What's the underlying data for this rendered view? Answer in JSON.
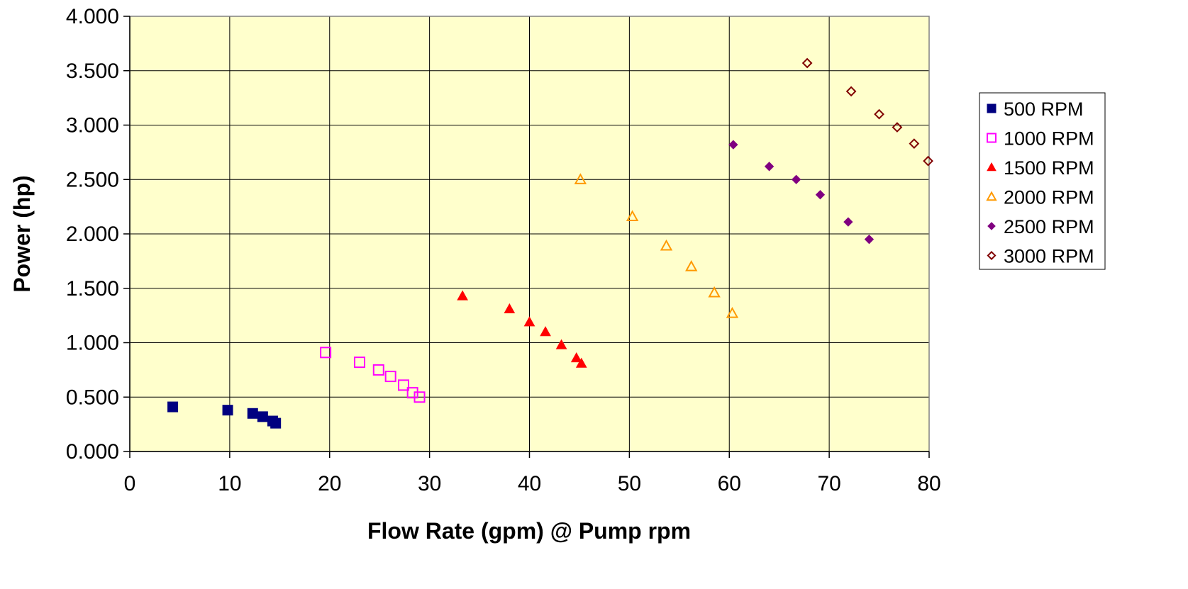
{
  "chart_data": {
    "type": "scatter",
    "title": "",
    "xlabel": "Flow Rate (gpm) @ Pump rpm",
    "ylabel": "Power (hp)",
    "xlim": [
      0,
      80
    ],
    "ylim": [
      0,
      4
    ],
    "x_ticks": [
      0,
      10,
      20,
      30,
      40,
      50,
      60,
      70,
      80
    ],
    "x_tick_labels": [
      "0",
      "10",
      "20",
      "30",
      "40",
      "50",
      "60",
      "70",
      "80"
    ],
    "y_ticks": [
      0,
      0.5,
      1,
      1.5,
      2,
      2.5,
      3,
      3.5,
      4
    ],
    "y_tick_labels": [
      "0.000",
      "0.500",
      "1.000",
      "1.500",
      "2.000",
      "2.500",
      "3.000",
      "3.500",
      "4.000"
    ],
    "grid": true,
    "plot_background": "#ffffcc",
    "legend_position": "right",
    "series": [
      {
        "name": "500 RPM",
        "marker": "square-filled",
        "color": "#000080",
        "points": [
          [
            4.3,
            0.41
          ],
          [
            9.8,
            0.38
          ],
          [
            12.3,
            0.35
          ],
          [
            13.3,
            0.32
          ],
          [
            14.3,
            0.28
          ],
          [
            14.6,
            0.26
          ]
        ]
      },
      {
        "name": "1000 RPM",
        "marker": "square-open",
        "color": "#ff00ff",
        "points": [
          [
            19.6,
            0.91
          ],
          [
            23.0,
            0.82
          ],
          [
            24.9,
            0.75
          ],
          [
            26.1,
            0.69
          ],
          [
            27.4,
            0.61
          ],
          [
            28.3,
            0.54
          ],
          [
            29.0,
            0.5
          ]
        ]
      },
      {
        "name": "1500 RPM",
        "marker": "triangle-filled",
        "color": "#ff0000",
        "points": [
          [
            33.3,
            1.43
          ],
          [
            38.0,
            1.31
          ],
          [
            40.0,
            1.19
          ],
          [
            41.6,
            1.1
          ],
          [
            43.2,
            0.98
          ],
          [
            44.7,
            0.86
          ],
          [
            45.2,
            0.81
          ]
        ]
      },
      {
        "name": "2000 RPM",
        "marker": "triangle-open",
        "color": "#ff9900",
        "points": [
          [
            45.1,
            2.5
          ],
          [
            50.3,
            2.16
          ],
          [
            53.7,
            1.89
          ],
          [
            56.2,
            1.7
          ],
          [
            58.5,
            1.46
          ],
          [
            60.3,
            1.27
          ]
        ]
      },
      {
        "name": "2500 RPM",
        "marker": "diamond-filled",
        "color": "#800080",
        "points": [
          [
            60.4,
            2.82
          ],
          [
            64.0,
            2.62
          ],
          [
            66.7,
            2.5
          ],
          [
            69.1,
            2.36
          ],
          [
            71.9,
            2.11
          ],
          [
            74.0,
            1.95
          ]
        ]
      },
      {
        "name": "3000 RPM",
        "marker": "diamond-open",
        "color": "#800000",
        "points": [
          [
            67.8,
            3.57
          ],
          [
            72.2,
            3.31
          ],
          [
            75.0,
            3.1
          ],
          [
            76.8,
            2.98
          ],
          [
            78.5,
            2.83
          ],
          [
            79.9,
            2.67
          ]
        ]
      }
    ]
  }
}
